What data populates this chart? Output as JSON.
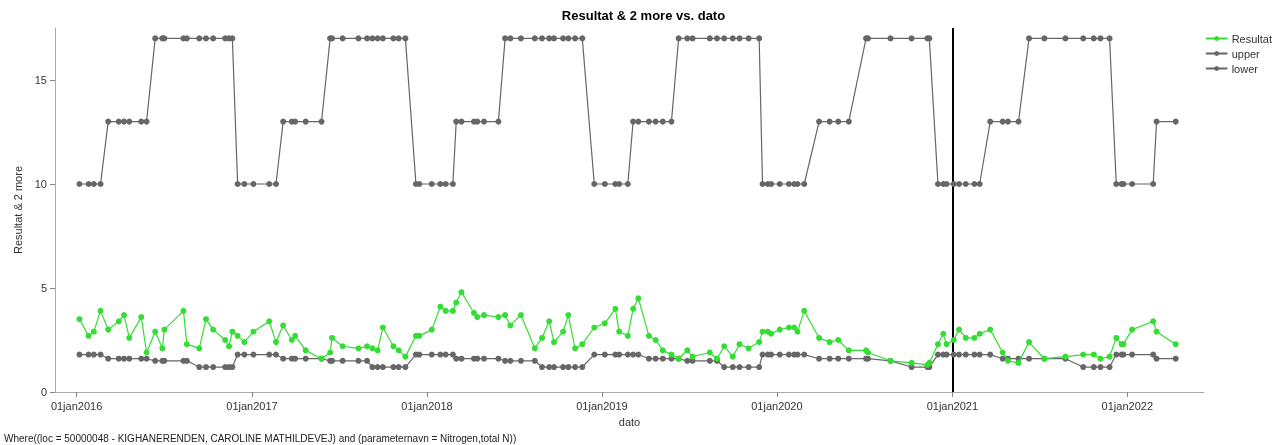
{
  "chart_data": {
    "type": "line",
    "title": "Resultat & 2 more vs. dato",
    "xlabel": "dato",
    "ylabel": "Resultat & 2 more",
    "x": [
      "2016-01-07",
      "2016-01-26",
      "2016-02-06",
      "2016-02-20",
      "2016-03-07",
      "2016-03-29",
      "2016-04-09",
      "2016-04-20",
      "2016-05-15",
      "2016-05-26",
      "2016-06-13",
      "2016-06-28",
      "2016-07-02",
      "2016-08-11",
      "2016-08-18",
      "2016-09-13",
      "2016-09-27",
      "2016-10-12",
      "2016-11-06",
      "2016-11-14",
      "2016-11-21",
      "2016-12-02",
      "2016-12-16",
      "2017-01-04",
      "2017-02-06",
      "2017-02-20",
      "2017-03-07",
      "2017-03-25",
      "2017-04-01",
      "2017-04-23",
      "2017-05-26",
      "2017-06-13",
      "2017-06-17",
      "2017-07-09",
      "2017-08-11",
      "2017-08-29",
      "2017-09-09",
      "2017-09-20",
      "2017-10-01",
      "2017-10-23",
      "2017-11-03",
      "2017-11-17",
      "2017-12-09",
      "2017-12-16",
      "2018-01-11",
      "2018-01-29",
      "2018-02-09",
      "2018-02-24",
      "2018-03-03",
      "2018-03-14",
      "2018-04-09",
      "2018-04-16",
      "2018-04-30",
      "2018-05-30",
      "2018-06-13",
      "2018-06-24",
      "2018-07-16",
      "2018-08-14",
      "2018-08-29",
      "2018-09-13",
      "2018-09-23",
      "2018-10-12",
      "2018-10-23",
      "2018-11-06",
      "2018-11-21",
      "2018-12-16",
      "2019-01-07",
      "2019-01-29",
      "2019-02-06",
      "2019-02-24",
      "2019-03-07",
      "2019-03-18",
      "2019-04-09",
      "2019-04-23",
      "2019-05-08",
      "2019-05-26",
      "2019-06-10",
      "2019-06-28",
      "2019-07-09",
      "2019-08-14",
      "2019-08-29",
      "2019-09-13",
      "2019-10-01",
      "2019-10-15",
      "2019-11-03",
      "2019-11-25",
      "2019-12-02",
      "2019-12-13",
      "2019-12-20",
      "2020-01-07",
      "2020-01-26",
      "2020-02-06",
      "2020-02-13",
      "2020-02-27",
      "2020-03-29",
      "2020-04-20",
      "2020-05-08",
      "2020-05-30",
      "2020-07-05",
      "2020-07-09",
      "2020-08-25",
      "2020-10-08",
      "2020-11-10",
      "2020-11-14",
      "2020-12-02",
      "2020-12-13",
      "2020-12-20",
      "2021-01-04",
      "2021-01-15",
      "2021-01-29",
      "2021-02-16",
      "2021-02-27",
      "2021-03-21",
      "2021-04-16",
      "2021-04-27",
      "2021-05-19",
      "2021-06-10",
      "2021-07-12",
      "2021-08-25",
      "2021-10-01",
      "2021-10-23",
      "2021-11-06",
      "2021-11-25",
      "2021-12-09",
      "2021-12-20",
      "2021-12-24",
      "2022-01-11",
      "2022-02-24",
      "2022-03-03",
      "2022-04-12"
    ],
    "series": [
      {
        "name": "Resultat",
        "color": "#33dd33",
        "values": [
          3.5,
          2.7,
          2.9,
          3.9,
          3.0,
          3.4,
          3.7,
          2.6,
          3.6,
          1.9,
          2.9,
          2.1,
          3.0,
          3.9,
          2.3,
          2.1,
          3.5,
          3.0,
          2.5,
          2.2,
          2.9,
          2.7,
          2.4,
          2.9,
          3.4,
          2.4,
          3.2,
          2.5,
          2.7,
          2.0,
          1.6,
          1.9,
          2.6,
          2.2,
          2.1,
          2.2,
          2.1,
          2.0,
          3.1,
          2.2,
          2.0,
          1.7,
          2.7,
          2.7,
          3.0,
          4.1,
          3.9,
          3.9,
          4.3,
          4.8,
          3.8,
          3.6,
          3.7,
          3.6,
          3.7,
          3.2,
          3.7,
          2.1,
          2.6,
          3.4,
          2.4,
          2.9,
          3.7,
          2.1,
          2.3,
          3.1,
          3.3,
          4.0,
          2.9,
          2.7,
          4.0,
          4.5,
          2.7,
          2.5,
          2.0,
          1.8,
          1.6,
          2.0,
          1.7,
          1.9,
          1.6,
          2.2,
          1.7,
          2.3,
          2.1,
          2.4,
          2.9,
          2.9,
          2.8,
          3.0,
          3.1,
          3.1,
          2.9,
          3.9,
          2.6,
          2.4,
          2.5,
          2.0,
          2.0,
          1.9,
          1.5,
          1.4,
          1.3,
          1.4,
          2.3,
          2.8,
          2.3,
          2.5,
          3.0,
          2.6,
          2.6,
          2.8,
          3.0,
          1.9,
          1.5,
          1.4,
          2.4,
          1.6,
          1.7,
          1.8,
          1.8,
          1.6,
          1.7,
          2.6,
          2.3,
          2.3,
          3.0,
          3.4,
          2.9,
          2.3
        ]
      },
      {
        "name": "upper",
        "color": "#666666",
        "values": [
          10,
          10,
          10,
          10,
          13,
          13,
          13,
          13,
          13,
          13,
          17,
          17,
          17,
          17,
          17,
          17,
          17,
          17,
          17,
          17,
          17,
          10,
          10,
          10,
          10,
          10,
          13,
          13,
          13,
          13,
          13,
          17,
          17,
          17,
          17,
          17,
          17,
          17,
          17,
          17,
          17,
          17,
          10,
          10,
          10,
          10,
          10,
          10,
          13,
          13,
          13,
          13,
          13,
          13,
          17,
          17,
          17,
          17,
          17,
          17,
          17,
          17,
          17,
          17,
          17,
          10,
          10,
          10,
          10,
          10,
          13,
          13,
          13,
          13,
          13,
          13,
          17,
          17,
          17,
          17,
          17,
          17,
          17,
          17,
          17,
          17,
          10,
          10,
          10,
          10,
          10,
          10,
          10,
          10,
          13,
          13,
          13,
          13,
          17,
          17,
          17,
          17,
          17,
          17,
          10,
          10,
          10,
          10,
          10,
          10,
          10,
          10,
          13,
          13,
          13,
          13,
          17,
          17,
          17,
          17,
          17,
          17,
          17,
          10,
          10,
          10,
          10,
          10,
          13,
          13
        ]
      },
      {
        "name": "lower",
        "color": "#666666",
        "values": [
          1.8,
          1.8,
          1.8,
          1.8,
          1.6,
          1.6,
          1.6,
          1.6,
          1.6,
          1.6,
          1.5,
          1.5,
          1.5,
          1.5,
          1.5,
          1.2,
          1.2,
          1.2,
          1.2,
          1.2,
          1.2,
          1.8,
          1.8,
          1.8,
          1.8,
          1.8,
          1.6,
          1.6,
          1.6,
          1.6,
          1.6,
          1.5,
          1.5,
          1.5,
          1.5,
          1.5,
          1.2,
          1.2,
          1.2,
          1.2,
          1.2,
          1.2,
          1.8,
          1.8,
          1.8,
          1.8,
          1.8,
          1.8,
          1.6,
          1.6,
          1.6,
          1.6,
          1.6,
          1.6,
          1.5,
          1.5,
          1.5,
          1.5,
          1.2,
          1.2,
          1.2,
          1.2,
          1.2,
          1.2,
          1.2,
          1.8,
          1.8,
          1.8,
          1.8,
          1.8,
          1.8,
          1.8,
          1.6,
          1.6,
          1.6,
          1.6,
          1.6,
          1.5,
          1.5,
          1.5,
          1.5,
          1.2,
          1.2,
          1.2,
          1.2,
          1.2,
          1.8,
          1.8,
          1.8,
          1.8,
          1.8,
          1.8,
          1.8,
          1.8,
          1.6,
          1.6,
          1.6,
          1.6,
          1.6,
          1.6,
          1.5,
          1.2,
          1.2,
          1.2,
          1.8,
          1.8,
          1.8,
          1.8,
          1.8,
          1.8,
          1.8,
          1.8,
          1.8,
          1.6,
          1.6,
          1.6,
          1.6,
          1.6,
          1.6,
          1.2,
          1.2,
          1.2,
          1.2,
          1.8,
          1.8,
          1.8,
          1.8,
          1.8,
          1.6,
          1.6
        ]
      }
    ],
    "xlim": [
      "2015-11-17",
      "2022-06-10"
    ],
    "xticks": [
      {
        "value": "2016-01-01",
        "label": "01jan2016"
      },
      {
        "value": "2017-01-01",
        "label": "01jan2017"
      },
      {
        "value": "2018-01-01",
        "label": "01jan2018"
      },
      {
        "value": "2019-01-01",
        "label": "01jan2019"
      },
      {
        "value": "2020-01-01",
        "label": "01jan2020"
      },
      {
        "value": "2021-01-01",
        "label": "01jan2021"
      },
      {
        "value": "2022-01-01",
        "label": "01jan2022"
      }
    ],
    "ylim": [
      0,
      17.5
    ],
    "yticks": [
      0,
      5,
      10,
      15
    ],
    "ref_lines": [
      {
        "axis": "x",
        "value": "2021-01-01",
        "color": "#000000"
      }
    ],
    "annotations": [
      "Where((loc = 50000048 - KIGHANERENDEN, CAROLINE MATHILDEVEJ) and (parameternavn = Nitrogen,total N))"
    ],
    "legend": "top right",
    "grid": false,
    "marker": "circle",
    "line_style": "solid"
  }
}
